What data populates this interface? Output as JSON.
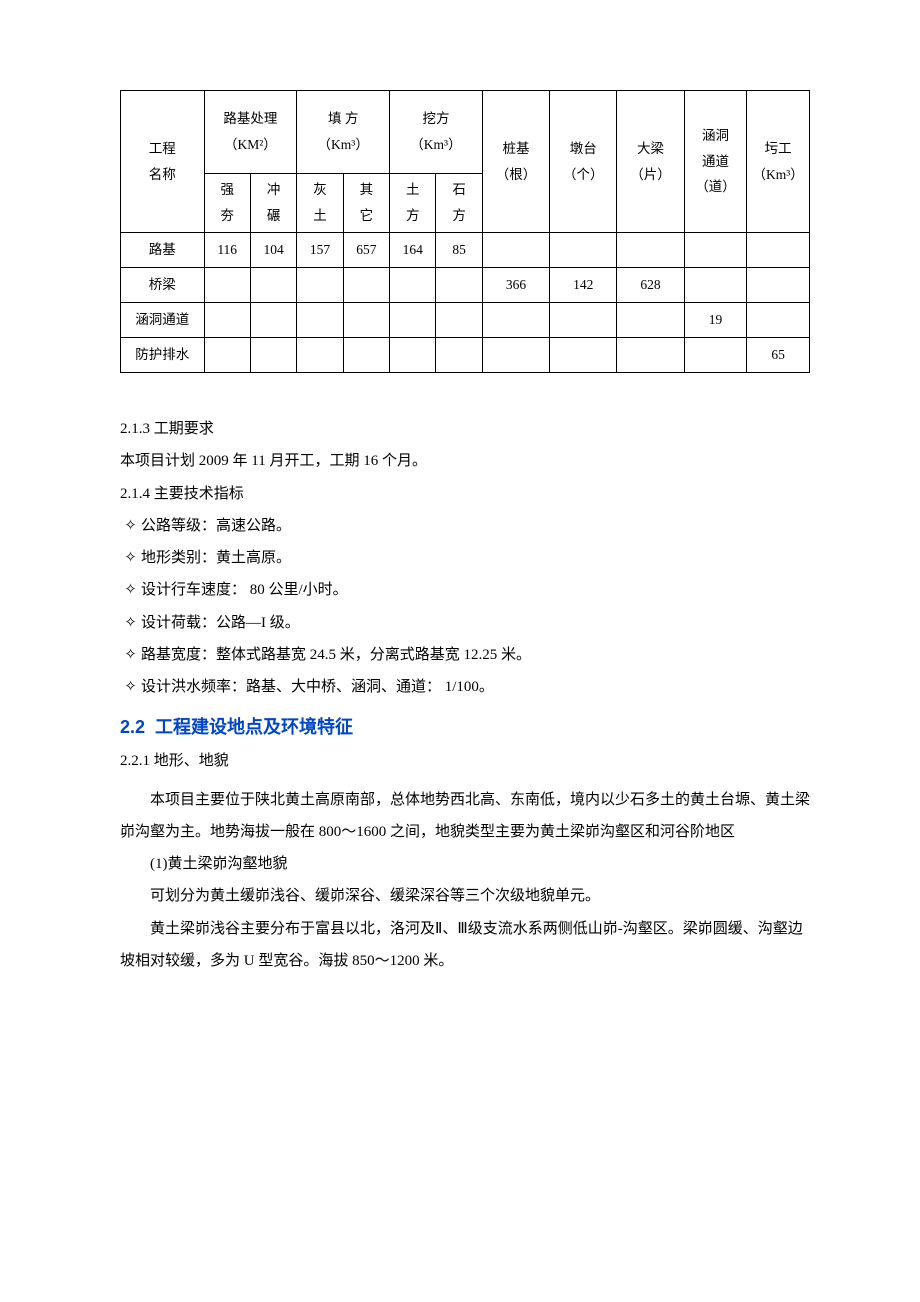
{
  "table": {
    "columns": {
      "header_row1": [
        {
          "label_lines": [
            "工程",
            "名称"
          ],
          "rowspan": 2
        },
        {
          "label_lines": [
            "路基处理",
            "（KM²）"
          ],
          "colspan": 2
        },
        {
          "label_lines": [
            "填 方",
            "（Km³）"
          ],
          "colspan": 2
        },
        {
          "label_lines": [
            "挖方",
            "（Km³）"
          ],
          "colspan": 2
        },
        {
          "label_lines": [
            "桩基",
            "（根）"
          ],
          "rowspan": 2
        },
        {
          "label_lines": [
            "墩台",
            "（个）"
          ],
          "rowspan": 2
        },
        {
          "label_lines": [
            "大梁",
            "（片）"
          ],
          "rowspan": 2
        },
        {
          "label_lines": [
            "涵洞",
            "通道",
            "（道）"
          ],
          "rowspan": 2
        },
        {
          "label_lines": [
            "圬工",
            "（Km³）"
          ],
          "rowspan": 2
        }
      ],
      "header_row2": [
        {
          "label_lines": [
            "强",
            "夯"
          ]
        },
        {
          "label_lines": [
            "冲",
            "碾"
          ]
        },
        {
          "label_lines": [
            "灰",
            "土"
          ]
        },
        {
          "label_lines": [
            "其",
            "它"
          ]
        },
        {
          "label_lines": [
            "土",
            "方"
          ]
        },
        {
          "label_lines": [
            "石",
            "方"
          ]
        }
      ]
    },
    "rows": [
      {
        "name": "路基",
        "cells": [
          "116",
          "104",
          "157",
          "657",
          "164",
          "85",
          "",
          "",
          "",
          "",
          ""
        ]
      },
      {
        "name": "桥梁",
        "cells": [
          "",
          "",
          "",
          "",
          "",
          "",
          "366",
          "142",
          "628",
          "",
          ""
        ]
      },
      {
        "name": "涵洞通道",
        "cells": [
          "",
          "",
          "",
          "",
          "",
          "",
          "",
          "",
          "",
          "19",
          ""
        ]
      },
      {
        "name": "防护排水",
        "cells": [
          "",
          "",
          "",
          "",
          "",
          "",
          "",
          "",
          "",
          "",
          "65"
        ]
      }
    ],
    "border_color": "#000000",
    "font_size": 13.5
  },
  "sections": {
    "s213": {
      "num": "2.1.3",
      "title": "工期要求",
      "body": "本项目计划 2009 年 11 月开工，工期 16 个月。"
    },
    "s214": {
      "num": "2.1.4",
      "title": "主要技术指标",
      "bullets": [
        "公路等级：高速公路。",
        "地形类别：黄土高原。",
        "设计行车速度： 80 公里/小时。",
        "设计荷载：公路—I 级。",
        "路基宽度：整体式路基宽 24.5 米，分离式路基宽 12.25 米。",
        "设计洪水频率：路基、大中桥、涵洞、通道： 1/100。"
      ],
      "bullet_glyph": "✧"
    },
    "s22": {
      "num": "2.2",
      "title": "工程建设地点及环境特征",
      "color": "#0045c6"
    },
    "s221": {
      "num": "2.2.1",
      "title": "地形、地貌",
      "paras": [
        "本项目主要位于陕北黄土高原南部，总体地势西北高、东南低，境内以少石多土的黄土台塬、黄土梁峁沟壑为主。地势海拔一般在 800～1600 之间，地貌类型主要为黄土梁峁沟壑区和河谷阶地区",
        "(1)黄土梁峁沟壑地貌",
        "可划分为黄土缓峁浅谷、缓峁深谷、缓梁深谷等三个次级地貌单元。",
        "黄土梁峁浅谷主要分布于富县以北，洛河及Ⅱ、Ⅲ级支流水系两侧低山峁-沟壑区。梁峁圆缓、沟壑边坡相对较缓，多为 U 型宽谷。海拔 850～1200 米。"
      ]
    }
  }
}
